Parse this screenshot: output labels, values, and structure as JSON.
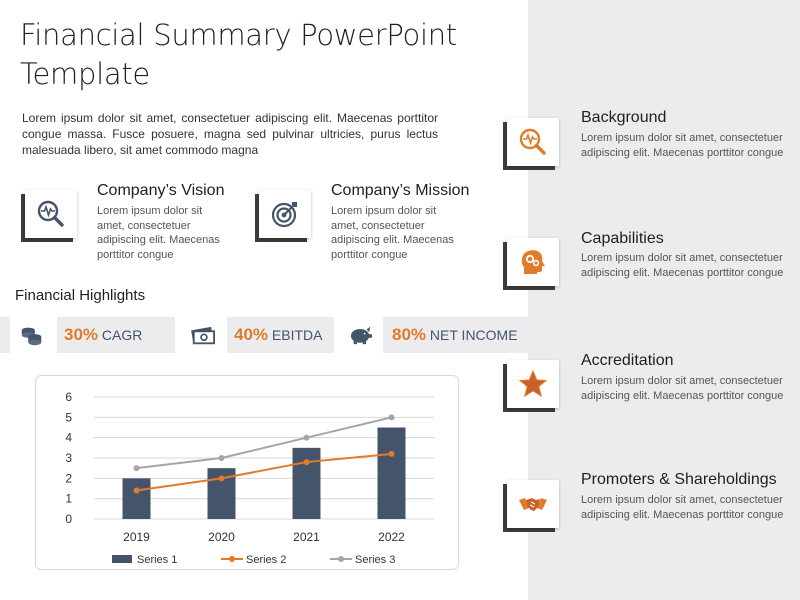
{
  "colors": {
    "accent": "#e07b2a",
    "navy": "#44546a",
    "gray": "#a5a5a5",
    "panel": "#ececee"
  },
  "title": "Financial Summary PowerPoint Template",
  "intro": "Lorem ipsum dolor sit amet, consectetuer adipiscing elit. Maecenas porttitor congue massa. Fusce posuere, magna sed pulvinar ultricies, purus lectus malesuada libero, sit amet commodo magna",
  "vision": {
    "title": "Company’s Vision",
    "text": "Lorem ipsum dolor sit amet, consectetuer adipiscing elit. Maecenas porttitor congue",
    "icon": "magnifier-pulse-icon"
  },
  "mission": {
    "title": "Company’s Mission",
    "text": "Lorem ipsum dolor sit amet, consectetuer adipiscing elit. Maecenas porttitor congue",
    "icon": "target-icon"
  },
  "highlights": {
    "label": "Financial Highlights",
    "kpis": [
      {
        "pct": "30%",
        "label": "CAGR",
        "icon": "coins-icon"
      },
      {
        "pct": "40%",
        "label": "EBITDA",
        "icon": "cash-icon"
      },
      {
        "pct": "80%",
        "label": "NET INCOME",
        "icon": "piggy-bank-icon"
      }
    ]
  },
  "sidebar": {
    "items": [
      {
        "title": "Background",
        "text": "Lorem ipsum dolor sit amet, consectetuer adipiscing elit. Maecenas porttitor congue",
        "icon": "magnifier-pulse-icon"
      },
      {
        "title": "Capabilities",
        "text": "Lorem ipsum dolor sit amet, consectetuer adipiscing elit. Maecenas porttitor congue",
        "icon": "head-gears-icon"
      },
      {
        "title": "Accreditation",
        "text": "Lorem ipsum dolor sit amet, consectetuer adipiscing elit. Maecenas porttitor congue",
        "icon": "star-icon"
      },
      {
        "title": "Promoters & Shareholdings",
        "text": "Lorem ipsum dolor sit amet, consectetuer adipiscing elit. Maecenas porttitor congue",
        "icon": "handshake-icon"
      }
    ]
  },
  "chart_data": {
    "type": "bar",
    "categories": [
      "2019",
      "2020",
      "2021",
      "2022"
    ],
    "series": [
      {
        "name": "Series 1",
        "type": "bar",
        "values": [
          2,
          2.5,
          3.5,
          4.5
        ],
        "color": "#44546a"
      },
      {
        "name": "Series 2",
        "type": "line",
        "values": [
          1.4,
          2,
          2.8,
          3.2
        ],
        "color": "#e07b2a"
      },
      {
        "name": "Series 3",
        "type": "line",
        "values": [
          2.5,
          3,
          4,
          5
        ],
        "color": "#a5a5a5"
      }
    ],
    "yticks": [
      "0",
      "1",
      "2",
      "3",
      "4",
      "5",
      "6"
    ],
    "ylim": [
      0,
      6
    ],
    "grid": true,
    "legend": "bottom"
  }
}
